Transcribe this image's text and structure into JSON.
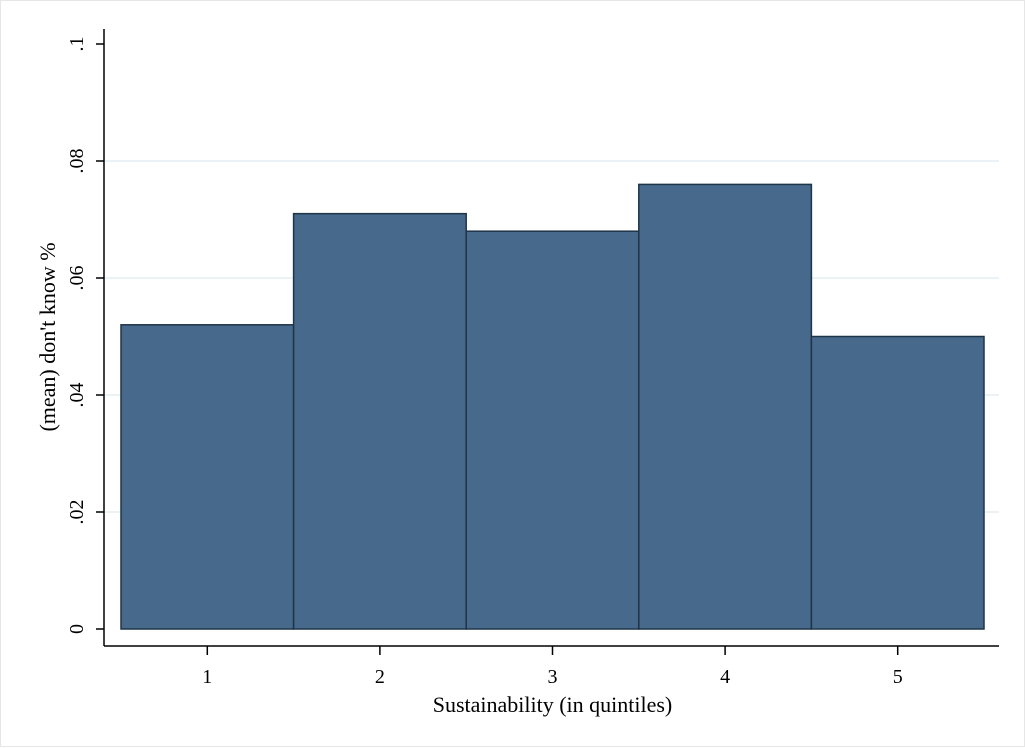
{
  "chart_data": {
    "type": "bar",
    "categories": [
      "1",
      "2",
      "3",
      "4",
      "5"
    ],
    "values": [
      0.052,
      0.071,
      0.068,
      0.076,
      0.05
    ],
    "title": "",
    "xlabel": "Sustainability (in quintiles)",
    "ylabel": "(mean) don't know %",
    "ylim": [
      0,
      0.1
    ],
    "yticks": [
      0,
      0.02,
      0.04,
      0.06,
      0.08,
      0.1
    ],
    "ytick_labels": [
      "0",
      ".02",
      ".04",
      ".06",
      ".08",
      ".1"
    ],
    "grid": true,
    "legend": "none"
  },
  "colors": {
    "bar_fill": "#476a8c",
    "bar_edge": "#1e3447",
    "grid": "#e4eef2",
    "axis": "#000000"
  }
}
